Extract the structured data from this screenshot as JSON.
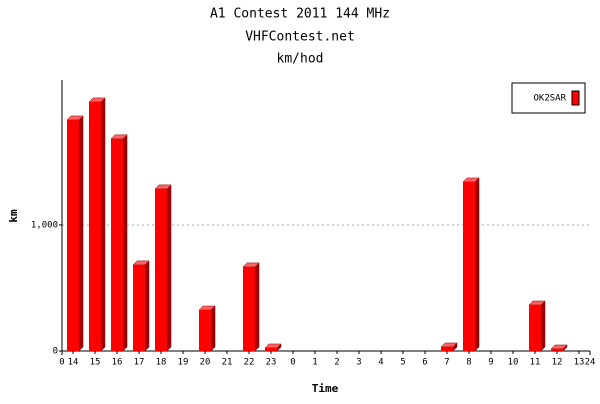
{
  "chart_data": {
    "type": "bar",
    "title": "A1 Contest 2011 144 MHz",
    "subtitle": "VHFContest.net",
    "subtitle2": "km/hod",
    "x_label": "Time",
    "y_label": "km",
    "categories": [
      "14",
      "15",
      "16",
      "17",
      "18",
      "19",
      "20",
      "21",
      "22",
      "23",
      "0",
      "1",
      "2",
      "3",
      "4",
      "5",
      "6",
      "7",
      "8",
      "9",
      "10",
      "11",
      "12",
      "13"
    ],
    "series": [
      {
        "name": "OK2SAR",
        "color": "#ff0000",
        "values": [
          1833,
          1976,
          1683,
          683,
          1286,
          0,
          325,
          0,
          667,
          24,
          0,
          0,
          0,
          0,
          0,
          0,
          0,
          32,
          1341,
          0,
          0,
          365,
          16,
          0
        ]
      }
    ],
    "xlim": [
      0,
      24
    ],
    "xticks": [
      0,
      24
    ],
    "ylim": [
      0,
      2150
    ],
    "yticks": [
      0,
      {
        "value": 1000,
        "label": "1,000"
      }
    ],
    "grid": true,
    "legend": "top-right"
  }
}
